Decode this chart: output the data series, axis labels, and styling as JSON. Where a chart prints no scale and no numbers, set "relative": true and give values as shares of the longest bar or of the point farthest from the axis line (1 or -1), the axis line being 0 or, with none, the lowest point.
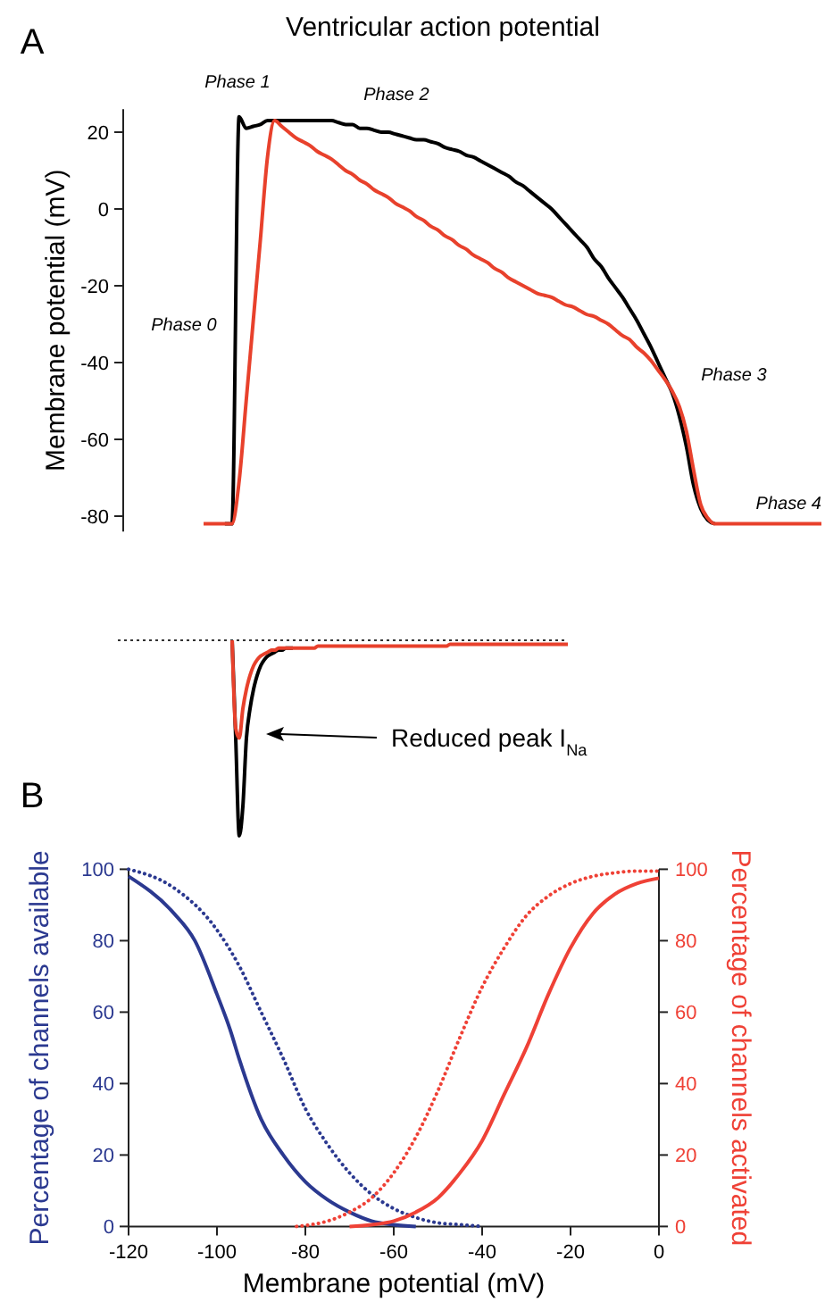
{
  "chart_data": [
    {
      "type": "line",
      "title": "Ventricular action potential",
      "ylabel": "Membrane potential (mV)",
      "tick_labels": "y",
      "categories": [
        null,
        null,
        null,
        null,
        null,
        null,
        null,
        null,
        null,
        null,
        null,
        null,
        null,
        null,
        null,
        null,
        null,
        null,
        null,
        null,
        null,
        null,
        null,
        null,
        null,
        null,
        null,
        null,
        null,
        null,
        null,
        null,
        null,
        null,
        null,
        null,
        null,
        null,
        null,
        null,
        null,
        null,
        null,
        null,
        null,
        null,
        null,
        null,
        null,
        null,
        null,
        null,
        null,
        null,
        null,
        null,
        null,
        null,
        null,
        null,
        null,
        null,
        null,
        null,
        null,
        null,
        null,
        null,
        null,
        null,
        null,
        null,
        null,
        null,
        null,
        null,
        null,
        null,
        null,
        null,
        null,
        null,
        null,
        null,
        null,
        null,
        null,
        null
      ],
      "ylim": [
        -84,
        26
      ],
      "yticks": [
        -80,
        -60,
        -40,
        -20,
        0,
        20
      ],
      "series": [
        {
          "color": "#000000",
          "values": [
            null,
            null,
            null,
            -82,
            -82,
            24,
            21,
            21.5,
            22,
            23,
            23,
            23,
            23,
            23,
            23,
            23,
            23,
            23,
            23,
            22.5,
            22,
            22,
            21,
            21,
            20.5,
            20,
            20,
            19.5,
            19,
            18.5,
            18,
            18,
            17.5,
            17,
            16,
            15.5,
            15,
            14,
            13.5,
            12.5,
            11.5,
            10.5,
            9.5,
            8.5,
            7,
            6,
            4.5,
            3,
            1.5,
            0,
            -2,
            -4,
            -6,
            -8,
            -10,
            -13,
            -15,
            -18,
            -20.5,
            -23,
            -26,
            -29,
            -32.5,
            -36,
            -40,
            -44,
            -48,
            -54,
            -62,
            -72,
            -78,
            -81,
            -82,
            null,
            null,
            null,
            null,
            null,
            null,
            null,
            null,
            null,
            null,
            null,
            null,
            null,
            null,
            null
          ]
        },
        {
          "color": "#e8412c",
          "values": [
            -82,
            -82,
            -82,
            -82,
            -82,
            -71,
            -50,
            -29,
            -8,
            13.5,
            23,
            21.5,
            20,
            18.5,
            17.5,
            16.5,
            15,
            14,
            13,
            11.5,
            10,
            9,
            7.5,
            6.5,
            5,
            4,
            3,
            1.5,
            0.5,
            -0.5,
            -2,
            -3,
            -4.5,
            -5.5,
            -7,
            -8,
            -9.5,
            -10.5,
            -12,
            -13,
            -14,
            -15.5,
            -16.5,
            -18,
            -19,
            -20,
            -21,
            -22,
            -22.5,
            -23,
            -24,
            -25,
            -25.5,
            -26.5,
            -27.5,
            -28,
            -29,
            -30,
            -31.5,
            -33,
            -34,
            -36,
            -37.5,
            -39.5,
            -42,
            -44.5,
            -47.5,
            -51.5,
            -58,
            -68,
            -77,
            -80.5,
            -82,
            -82,
            -82,
            -82,
            -82,
            -82,
            -82,
            -82,
            -82,
            -82,
            -82,
            -82,
            -82,
            -82,
            -82,
            -82
          ]
        }
      ],
      "annotations": [
        "A",
        "Phase 1",
        "Phase 2",
        "Phase 0",
        "Phase 3",
        "Phase 4"
      ]
    },
    {
      "type": "line",
      "relative": true,
      "categories": [
        null,
        null,
        null,
        null,
        null,
        null,
        null,
        null,
        null,
        null,
        null,
        null,
        null,
        null,
        null,
        null,
        null,
        null,
        null,
        null,
        null,
        null,
        null,
        null,
        null,
        null,
        null,
        null,
        null,
        null,
        null,
        null,
        null,
        null,
        null,
        null,
        null,
        null,
        null,
        null,
        null,
        null,
        null,
        null,
        null,
        null,
        null,
        null,
        null,
        null,
        null,
        null,
        null,
        null,
        null,
        null,
        null,
        null,
        null,
        null,
        null,
        null,
        null,
        null,
        null,
        null,
        null,
        null,
        null,
        null,
        null,
        null,
        null,
        null,
        null,
        null,
        null,
        null,
        null,
        null,
        null,
        null,
        null,
        null,
        null,
        null,
        null,
        null,
        null,
        null,
        null,
        null,
        null,
        null,
        null
      ],
      "series": [
        {
          "color": "#000000",
          "values": [
            0,
            -0.5,
            -1,
            -0.85,
            -0.5,
            -0.35,
            -0.25,
            -0.18,
            -0.13,
            -0.1,
            -0.08,
            -0.07,
            -0.06,
            -0.05,
            -0.05,
            -0.04,
            -0.04,
            -0.04,
            null,
            null,
            null,
            null,
            null,
            null,
            null,
            null,
            null,
            null,
            null,
            null,
            null,
            null,
            null,
            null,
            null,
            null,
            null,
            null,
            null,
            null,
            null,
            null,
            null,
            null,
            null,
            null,
            null,
            null,
            null,
            null,
            null,
            null,
            null,
            null,
            null,
            null,
            null,
            null,
            null,
            null,
            null,
            null,
            null,
            null,
            null,
            null,
            null,
            null,
            null,
            null,
            null,
            null,
            null,
            null,
            null,
            null,
            null,
            null,
            null,
            null,
            null,
            null,
            null,
            null,
            null,
            null,
            null,
            null,
            null,
            null,
            null,
            null,
            null,
            null,
            null
          ]
        },
        {
          "color": "#e8412c",
          "values": [
            0,
            -0.45,
            -0.5,
            -0.35,
            -0.25,
            -0.18,
            -0.13,
            -0.1,
            -0.08,
            -0.07,
            -0.06,
            -0.05,
            -0.05,
            -0.04,
            -0.04,
            -0.04,
            -0.04,
            -0.04,
            -0.04,
            -0.04,
            -0.04,
            -0.04,
            -0.04,
            -0.04,
            -0.03,
            -0.03,
            -0.03,
            -0.03,
            -0.03,
            -0.03,
            -0.03,
            -0.03,
            -0.03,
            -0.03,
            -0.03,
            -0.03,
            -0.03,
            -0.03,
            -0.03,
            -0.03,
            -0.03,
            -0.03,
            -0.03,
            -0.03,
            -0.03,
            -0.03,
            -0.03,
            -0.03,
            -0.03,
            -0.03,
            -0.03,
            -0.03,
            -0.03,
            -0.03,
            -0.03,
            -0.03,
            -0.03,
            -0.03,
            -0.03,
            -0.03,
            -0.03,
            -0.02,
            -0.02,
            -0.02,
            -0.02,
            -0.02,
            -0.02,
            -0.02,
            -0.02,
            -0.02,
            -0.02,
            -0.02,
            -0.02,
            -0.02,
            -0.02,
            -0.02,
            -0.02,
            -0.02,
            -0.02,
            -0.02,
            -0.02,
            -0.02,
            -0.02,
            -0.02,
            -0.02,
            -0.02,
            -0.02,
            -0.02,
            -0.02,
            -0.02,
            -0.02,
            -0.02,
            -0.02,
            -0.02,
            -0.02
          ]
        }
      ],
      "ref_lines": [
        {
          "axis": "y",
          "value": 0,
          "color": "#333333",
          "line_style": "dotted"
        }
      ],
      "annotations": [
        "Reduced peak I$_{Na}$"
      ]
    },
    {
      "type": "line",
      "xlabel": "Membrane potential (mV)",
      "ylabel": "Percentage of channels available",
      "y2label": "Percentage of channels activated",
      "xlim": [
        -120,
        0
      ],
      "xticks": [
        -120,
        -100,
        -80,
        -60,
        -40,
        -20,
        0
      ],
      "ylim": [
        0,
        100
      ],
      "yticks": [
        0,
        20,
        40,
        60,
        80,
        100
      ],
      "y2lim": [
        0,
        100
      ],
      "y2ticks": [
        0,
        20,
        40,
        60,
        80,
        100
      ],
      "series": [
        {
          "color": "#2b3990",
          "line_style": "solid",
          "x": [
            -120,
            -110,
            -105,
            -100,
            -97,
            -95,
            -90,
            -85,
            -80,
            -75,
            -70,
            -65,
            -60,
            -55
          ],
          "values": [
            98,
            88,
            80,
            65,
            55,
            47,
            30,
            20,
            12.5,
            7.5,
            4,
            1.5,
            0.5,
            0
          ]
        },
        {
          "color": "#2b3990",
          "line_style": "dotted",
          "x": [
            -120,
            -110,
            -100,
            -95,
            -90,
            -85,
            -80,
            -75,
            -70,
            -65,
            -60,
            -55,
            -50,
            -45,
            -40
          ],
          "values": [
            100,
            95,
            83,
            73,
            60,
            47,
            33,
            23,
            15,
            9,
            5,
            2.5,
            1,
            0.5,
            0
          ]
        },
        {
          "color": "#ef4136",
          "axis": "y2",
          "line_style": "solid",
          "x": [
            -70,
            -65,
            -60,
            -55,
            -50,
            -45,
            -40,
            -35,
            -30,
            -25,
            -20,
            -15,
            -10,
            -5,
            0
          ],
          "values": [
            0,
            0.5,
            1.5,
            4,
            8,
            15,
            24,
            37,
            50,
            65,
            78,
            87.5,
            93,
            96,
            97.5
          ]
        },
        {
          "color": "#ef4136",
          "axis": "y2",
          "line_style": "dotted",
          "x": [
            -82,
            -75,
            -70,
            -65,
            -60,
            -55,
            -50,
            -45,
            -40,
            -35,
            -30,
            -25,
            -20,
            -15,
            -10,
            -5,
            0
          ],
          "values": [
            0,
            1.5,
            4,
            8,
            15,
            25,
            38,
            53,
            67,
            78,
            87,
            92.5,
            96,
            98,
            99,
            99.5,
            99.5
          ]
        }
      ],
      "annotations": [
        "B"
      ]
    }
  ]
}
